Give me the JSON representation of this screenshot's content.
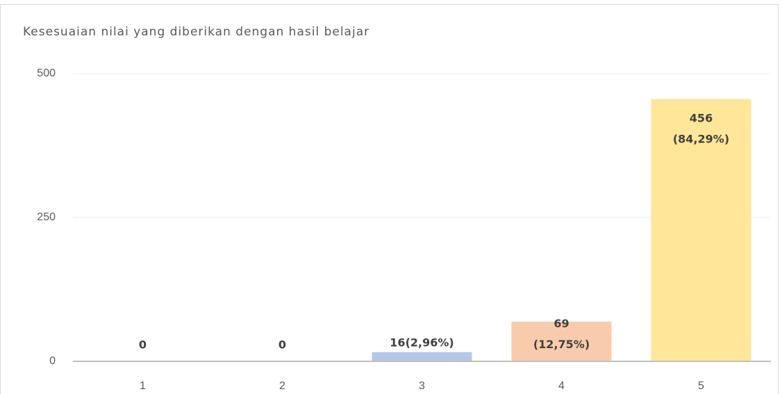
{
  "chart_data": {
    "type": "bar",
    "title": "Kesesuaian nilai yang diberikan dengan hasil belajar",
    "categories": [
      "1",
      "2",
      "3",
      "4",
      "5"
    ],
    "values": [
      0,
      0,
      16,
      69,
      456
    ],
    "value_labels": [
      "0",
      "0",
      "16(2,96%)",
      "69\n(12,75%)",
      "456\n(84,29%)"
    ],
    "colors": [
      "#b4c7e7",
      "#f8cbad",
      "#b4c7e7",
      "#f8cbad",
      "#ffe699"
    ],
    "ylim": [
      0,
      500
    ],
    "yticks": [
      0,
      250,
      500
    ],
    "grid": true
  }
}
